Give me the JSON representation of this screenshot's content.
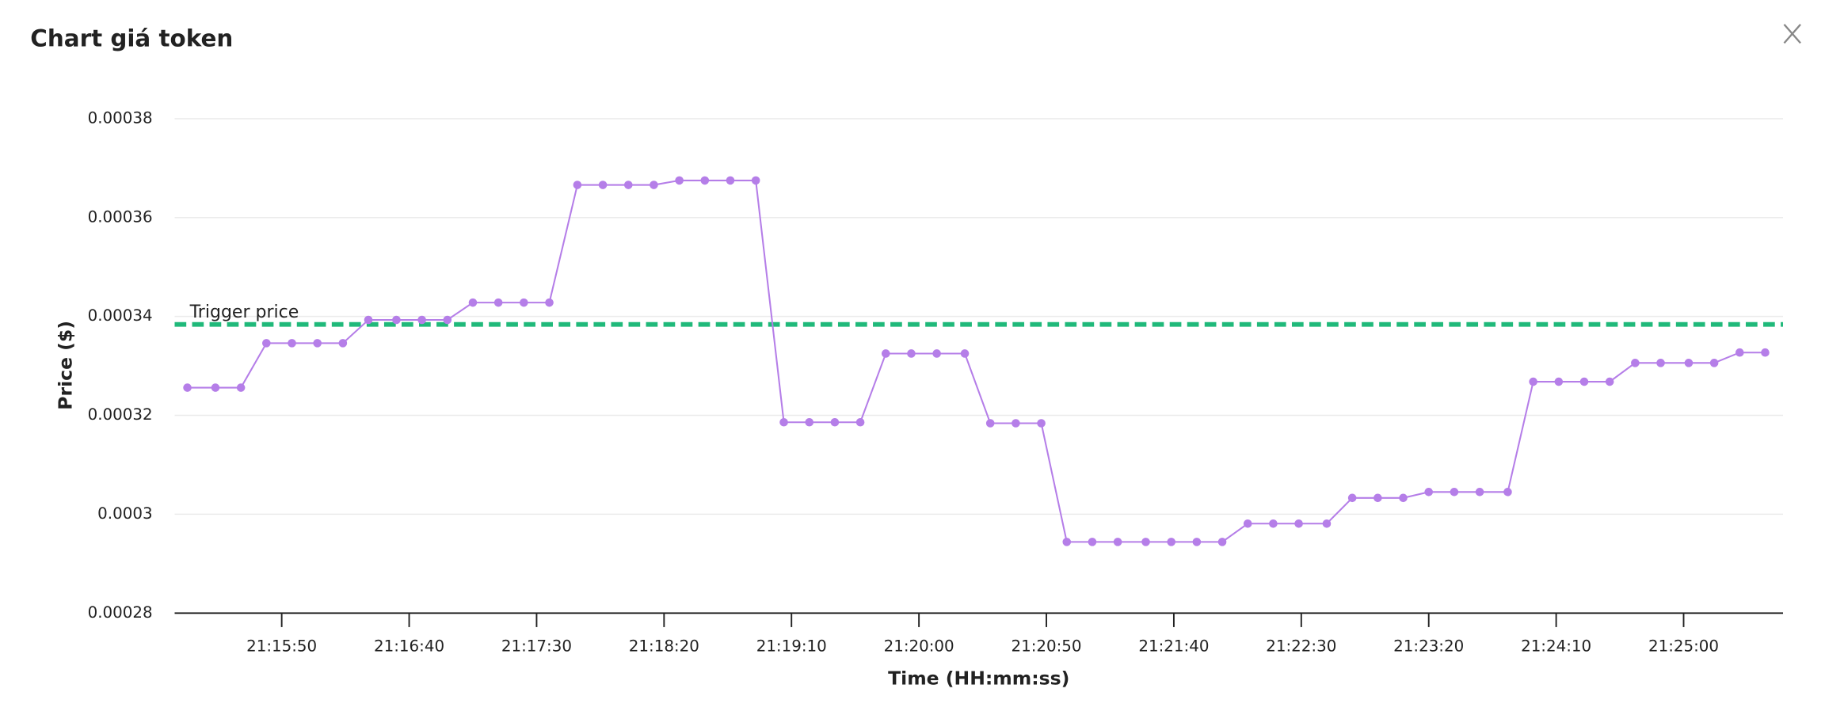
{
  "header": {
    "title": "Chart giá token"
  },
  "chart_data": {
    "type": "line",
    "x_label": "Time (HH:mm:ss)",
    "y_label": "Price ($)",
    "x": [
      "21:15:13",
      "21:15:24",
      "21:15:34",
      "21:15:44",
      "21:15:54",
      "21:16:04",
      "21:16:14",
      "21:16:24",
      "21:16:35",
      "21:16:45",
      "21:16:55",
      "21:17:05",
      "21:17:15",
      "21:17:25",
      "21:17:35",
      "21:17:46",
      "21:17:56",
      "21:18:06",
      "21:18:16",
      "21:18:26",
      "21:18:36",
      "21:18:46",
      "21:18:56",
      "21:19:07",
      "21:19:17",
      "21:19:27",
      "21:19:37",
      "21:19:47",
      "21:19:57",
      "21:20:07",
      "21:20:18",
      "21:20:28",
      "21:20:38",
      "21:20:48",
      "21:20:58",
      "21:21:08",
      "21:21:18",
      "21:21:29",
      "21:21:39",
      "21:21:49",
      "21:21:59",
      "21:22:09",
      "21:22:19",
      "21:22:29",
      "21:22:40",
      "21:22:50",
      "21:23:00",
      "21:23:10",
      "21:23:20",
      "21:23:30",
      "21:23:40",
      "21:23:51",
      "21:24:01",
      "21:24:11",
      "21:24:21",
      "21:24:31",
      "21:24:41",
      "21:24:51",
      "21:25:02",
      "21:25:12",
      "21:25:22",
      "21:25:32"
    ],
    "series": [
      {
        "color": "#b57ee8",
        "values": [
          0.0003256,
          0.0003256,
          0.0003256,
          0.0003346,
          0.0003346,
          0.0003346,
          0.0003346,
          0.0003393,
          0.0003393,
          0.0003393,
          0.0003393,
          0.0003428,
          0.0003428,
          0.0003428,
          0.0003428,
          0.0003666,
          0.0003666,
          0.0003666,
          0.0003666,
          0.0003675,
          0.0003675,
          0.0003675,
          0.0003675,
          0.0003186,
          0.0003186,
          0.0003186,
          0.0003186,
          0.0003325,
          0.0003325,
          0.0003325,
          0.0003325,
          0.0003184,
          0.0003184,
          0.0003184,
          0.0002944,
          0.0002944,
          0.0002944,
          0.0002944,
          0.0002944,
          0.0002944,
          0.0002944,
          0.0002981,
          0.0002981,
          0.0002981,
          0.0002981,
          0.0003033,
          0.0003033,
          0.0003033,
          0.0003045,
          0.0003045,
          0.0003045,
          0.0003045,
          0.0003268,
          0.0003268,
          0.0003268,
          0.0003268,
          0.0003306,
          0.0003306,
          0.0003306,
          0.0003306,
          0.0003327,
          0.0003327
        ]
      }
    ],
    "xlim": [
      "21:15:08",
      "21:25:39"
    ],
    "xticks": [
      "21:15:50",
      "21:16:40",
      "21:17:30",
      "21:18:20",
      "21:19:10",
      "21:20:00",
      "21:20:50",
      "21:21:40",
      "21:22:30",
      "21:23:20",
      "21:24:10",
      "21:25:00"
    ],
    "ylim": [
      0.00028,
      0.00038
    ],
    "yticks": [
      0.00028,
      0.0003,
      0.00032,
      0.00034,
      0.00036,
      0.00038
    ],
    "grid": true,
    "annotations": [
      {
        "text": "Trigger price",
        "value": 0.0003384,
        "color": "#20b97a"
      }
    ]
  }
}
